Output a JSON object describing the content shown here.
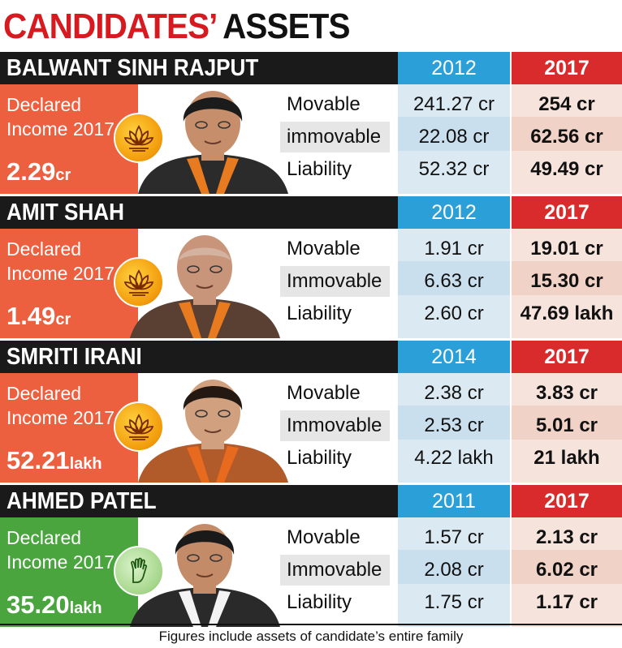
{
  "title": {
    "part1": "CANDIDATES’",
    "part2": "ASSETS"
  },
  "colors": {
    "bjp_box": "#ec5f3f",
    "inc_box": "#4aa53e",
    "year_old": "#2a9fd8",
    "year_new": "#d92b2b"
  },
  "candidates": [
    {
      "name": "BALWANT SINH RAJPUT",
      "party_icon": "bjp-lotus-icon",
      "income_label": "Declared Income 2017",
      "income_value": "2.29",
      "income_unit": "cr",
      "year_old": "2012",
      "year_new": "2017",
      "rows": [
        {
          "label": "Movable",
          "old": "241.27 cr",
          "new": "254 cr"
        },
        {
          "label": "immovable",
          "old": "22.08 cr",
          "new": "62.56 cr"
        },
        {
          "label": "Liability",
          "old": "52.32 cr",
          "new": "49.49 cr"
        }
      ]
    },
    {
      "name": "AMIT SHAH",
      "party_icon": "bjp-lotus-icon",
      "income_label": "Declared Income 2017",
      "income_value": "1.49",
      "income_unit": "cr",
      "year_old": "2012",
      "year_new": "2017",
      "rows": [
        {
          "label": "Movable",
          "old": "1.91 cr",
          "new": "19.01 cr"
        },
        {
          "label": "Immovable",
          "old": "6.63 cr",
          "new": "15.30 cr"
        },
        {
          "label": "Liability",
          "old": "2.60 cr",
          "new": "47.69 lakh"
        }
      ]
    },
    {
      "name": "SMRITI IRANI",
      "party_icon": "bjp-lotus-icon",
      "income_label": "Declared Income 2017",
      "income_value": "52.21",
      "income_unit": "lakh",
      "year_old": "2014",
      "year_new": "2017",
      "rows": [
        {
          "label": "Movable",
          "old": "2.38 cr",
          "new": "3.83 cr"
        },
        {
          "label": "Immovable",
          "old": "2.53 cr",
          "new": "5.01 cr"
        },
        {
          "label": "Liability",
          "old": "4.22 lakh",
          "new": "21 lakh"
        }
      ]
    },
    {
      "name": "AHMED PATEL",
      "party_icon": "congress-hand-icon",
      "income_label": "Declared Income 2017",
      "income_value": "35.20",
      "income_unit": "lakh",
      "year_old": "2011",
      "year_new": "2017",
      "rows": [
        {
          "label": "Movable",
          "old": "1.57 cr",
          "new": "2.13 cr"
        },
        {
          "label": "Immovable",
          "old": "2.08 cr",
          "new": "6.02 cr"
        },
        {
          "label": "Liability",
          "old": "1.75 cr",
          "new": "1.17 cr"
        }
      ]
    }
  ],
  "footer": "Figures include assets of candidate’s entire family"
}
